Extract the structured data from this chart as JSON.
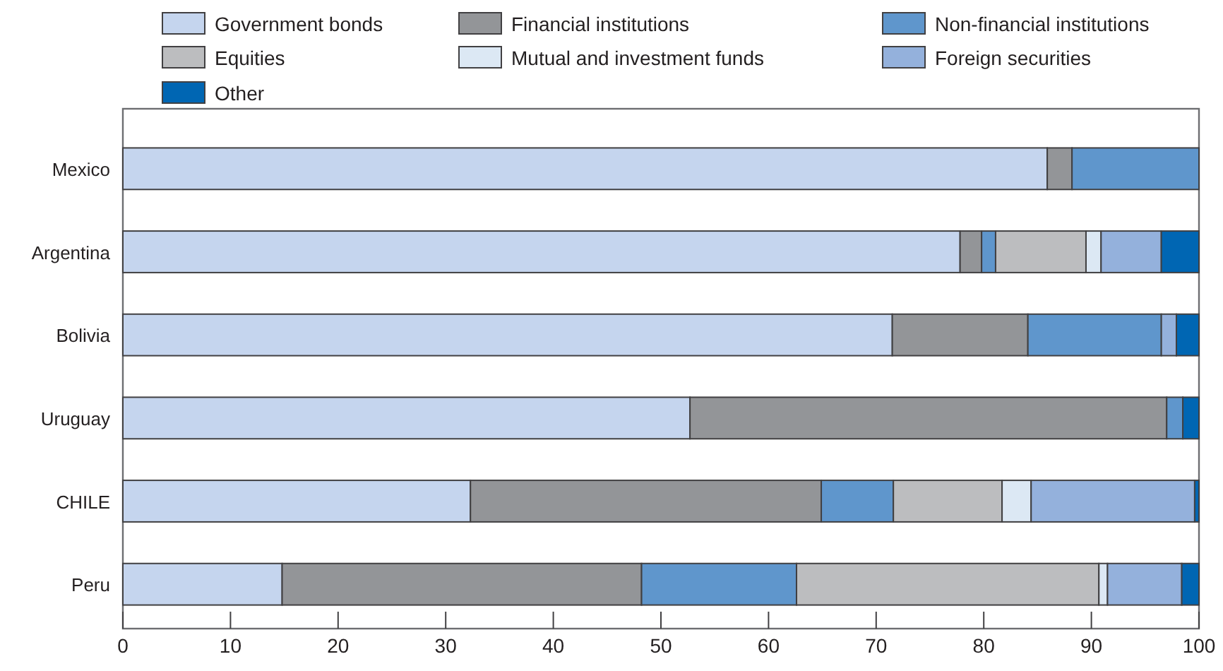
{
  "chart_data": {
    "type": "bar",
    "orientation": "horizontal",
    "stacked": true,
    "categories": [
      "Mexico",
      "Argentina",
      "Bolivia",
      "Uruguay",
      "CHILE",
      "Peru"
    ],
    "series": [
      {
        "name": "Government bonds",
        "color": "#c5d5ee",
        "values": [
          85.9,
          77.8,
          71.5,
          52.7,
          32.3,
          14.8
        ]
      },
      {
        "name": "Financial institutions",
        "color": "#939598",
        "values": [
          2.3,
          2.0,
          12.6,
          44.3,
          32.6,
          33.4
        ]
      },
      {
        "name": "Non-financial institutions",
        "color": "#5f96cc",
        "values": [
          11.8,
          1.3,
          12.4,
          1.5,
          6.7,
          14.4
        ]
      },
      {
        "name": "Equities",
        "color": "#bcbdbf",
        "values": [
          0,
          8.4,
          0,
          0,
          10.1,
          28.1
        ]
      },
      {
        "name": "Mutual and investment funds",
        "color": "#dce8f4",
        "values": [
          0,
          1.4,
          0,
          0,
          2.7,
          0.8
        ]
      },
      {
        "name": "Foreign securities",
        "color": "#94b1dc",
        "values": [
          0,
          5.6,
          1.4,
          0,
          15.2,
          6.9
        ]
      },
      {
        "name": "Other",
        "color": "#0066b3",
        "values": [
          0,
          3.5,
          2.1,
          1.5,
          0.4,
          1.6
        ]
      }
    ],
    "xlim": [
      0,
      100
    ],
    "xticks": [
      0,
      10,
      20,
      30,
      40,
      50,
      60,
      70,
      80,
      90,
      100
    ],
    "grid": false,
    "legend": "top"
  }
}
